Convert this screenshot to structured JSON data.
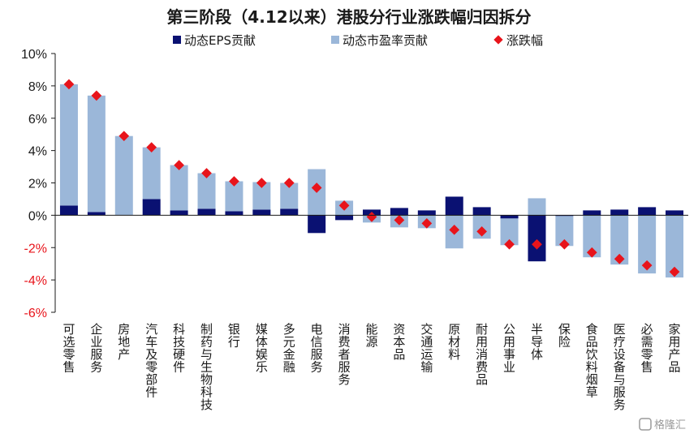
{
  "chart_data": {
    "type": "bar",
    "title": "第三阶段（4.12以来）港股分行业涨跌幅归因拆分",
    "categories": [
      "可选零售",
      "企业服务",
      "房地产",
      "汽车及零部件",
      "科技硬件",
      "制药与生物科技",
      "银行",
      "媒体娱乐",
      "多元金融",
      "电信服务",
      "消费者服务",
      "能源",
      "资本品",
      "交通运输",
      "原材料",
      "耐用消费品",
      "公用事业",
      "半导体",
      "保险",
      "食品饮料烟草",
      "医疗设备与服务",
      "必需零售",
      "家用产品"
    ],
    "series": [
      {
        "name": "动态EPS贡献",
        "color": "#0a1172",
        "values": [
          0.6,
          0.2,
          0.0,
          1.0,
          0.3,
          0.4,
          0.25,
          0.35,
          0.4,
          -1.1,
          -0.3,
          0.35,
          0.45,
          0.3,
          1.15,
          0.5,
          -0.2,
          -2.85,
          -0.05,
          0.3,
          0.35,
          0.5,
          0.3
        ]
      },
      {
        "name": "动态市盈率贡献",
        "color": "#9bb7d9",
        "values": [
          7.5,
          7.2,
          4.9,
          3.2,
          2.8,
          2.2,
          1.85,
          1.7,
          1.6,
          2.85,
          0.9,
          -0.45,
          -0.75,
          -0.8,
          -2.05,
          -1.45,
          -1.65,
          1.05,
          -1.85,
          -2.6,
          -3.05,
          -3.6,
          -3.85
        ]
      },
      {
        "name": "涨跌幅",
        "color": "#e8141b",
        "values": [
          8.1,
          7.4,
          4.9,
          4.2,
          3.1,
          2.6,
          2.1,
          2.0,
          2.0,
          1.7,
          0.6,
          -0.1,
          -0.3,
          -0.5,
          -0.9,
          -1.0,
          -1.8,
          -1.8,
          -1.8,
          -2.3,
          -2.7,
          -3.1,
          -3.5
        ]
      }
    ],
    "ylim": [
      -6,
      10
    ],
    "yticks": [
      10,
      8,
      6,
      4,
      2,
      0,
      -2,
      -4,
      -6
    ],
    "ytick_labels": [
      "10%",
      "8%",
      "6%",
      "4%",
      "2%",
      "0%",
      "-2%",
      "-4%",
      "-6%"
    ],
    "xlabel": "",
    "ylabel": "",
    "legend_position": "top",
    "grid": false
  },
  "watermark": "格隆汇",
  "colors": {
    "negative_tick": "#e8141b",
    "positive_tick": "#1a1a1a",
    "axis": "#1a1a1a"
  }
}
